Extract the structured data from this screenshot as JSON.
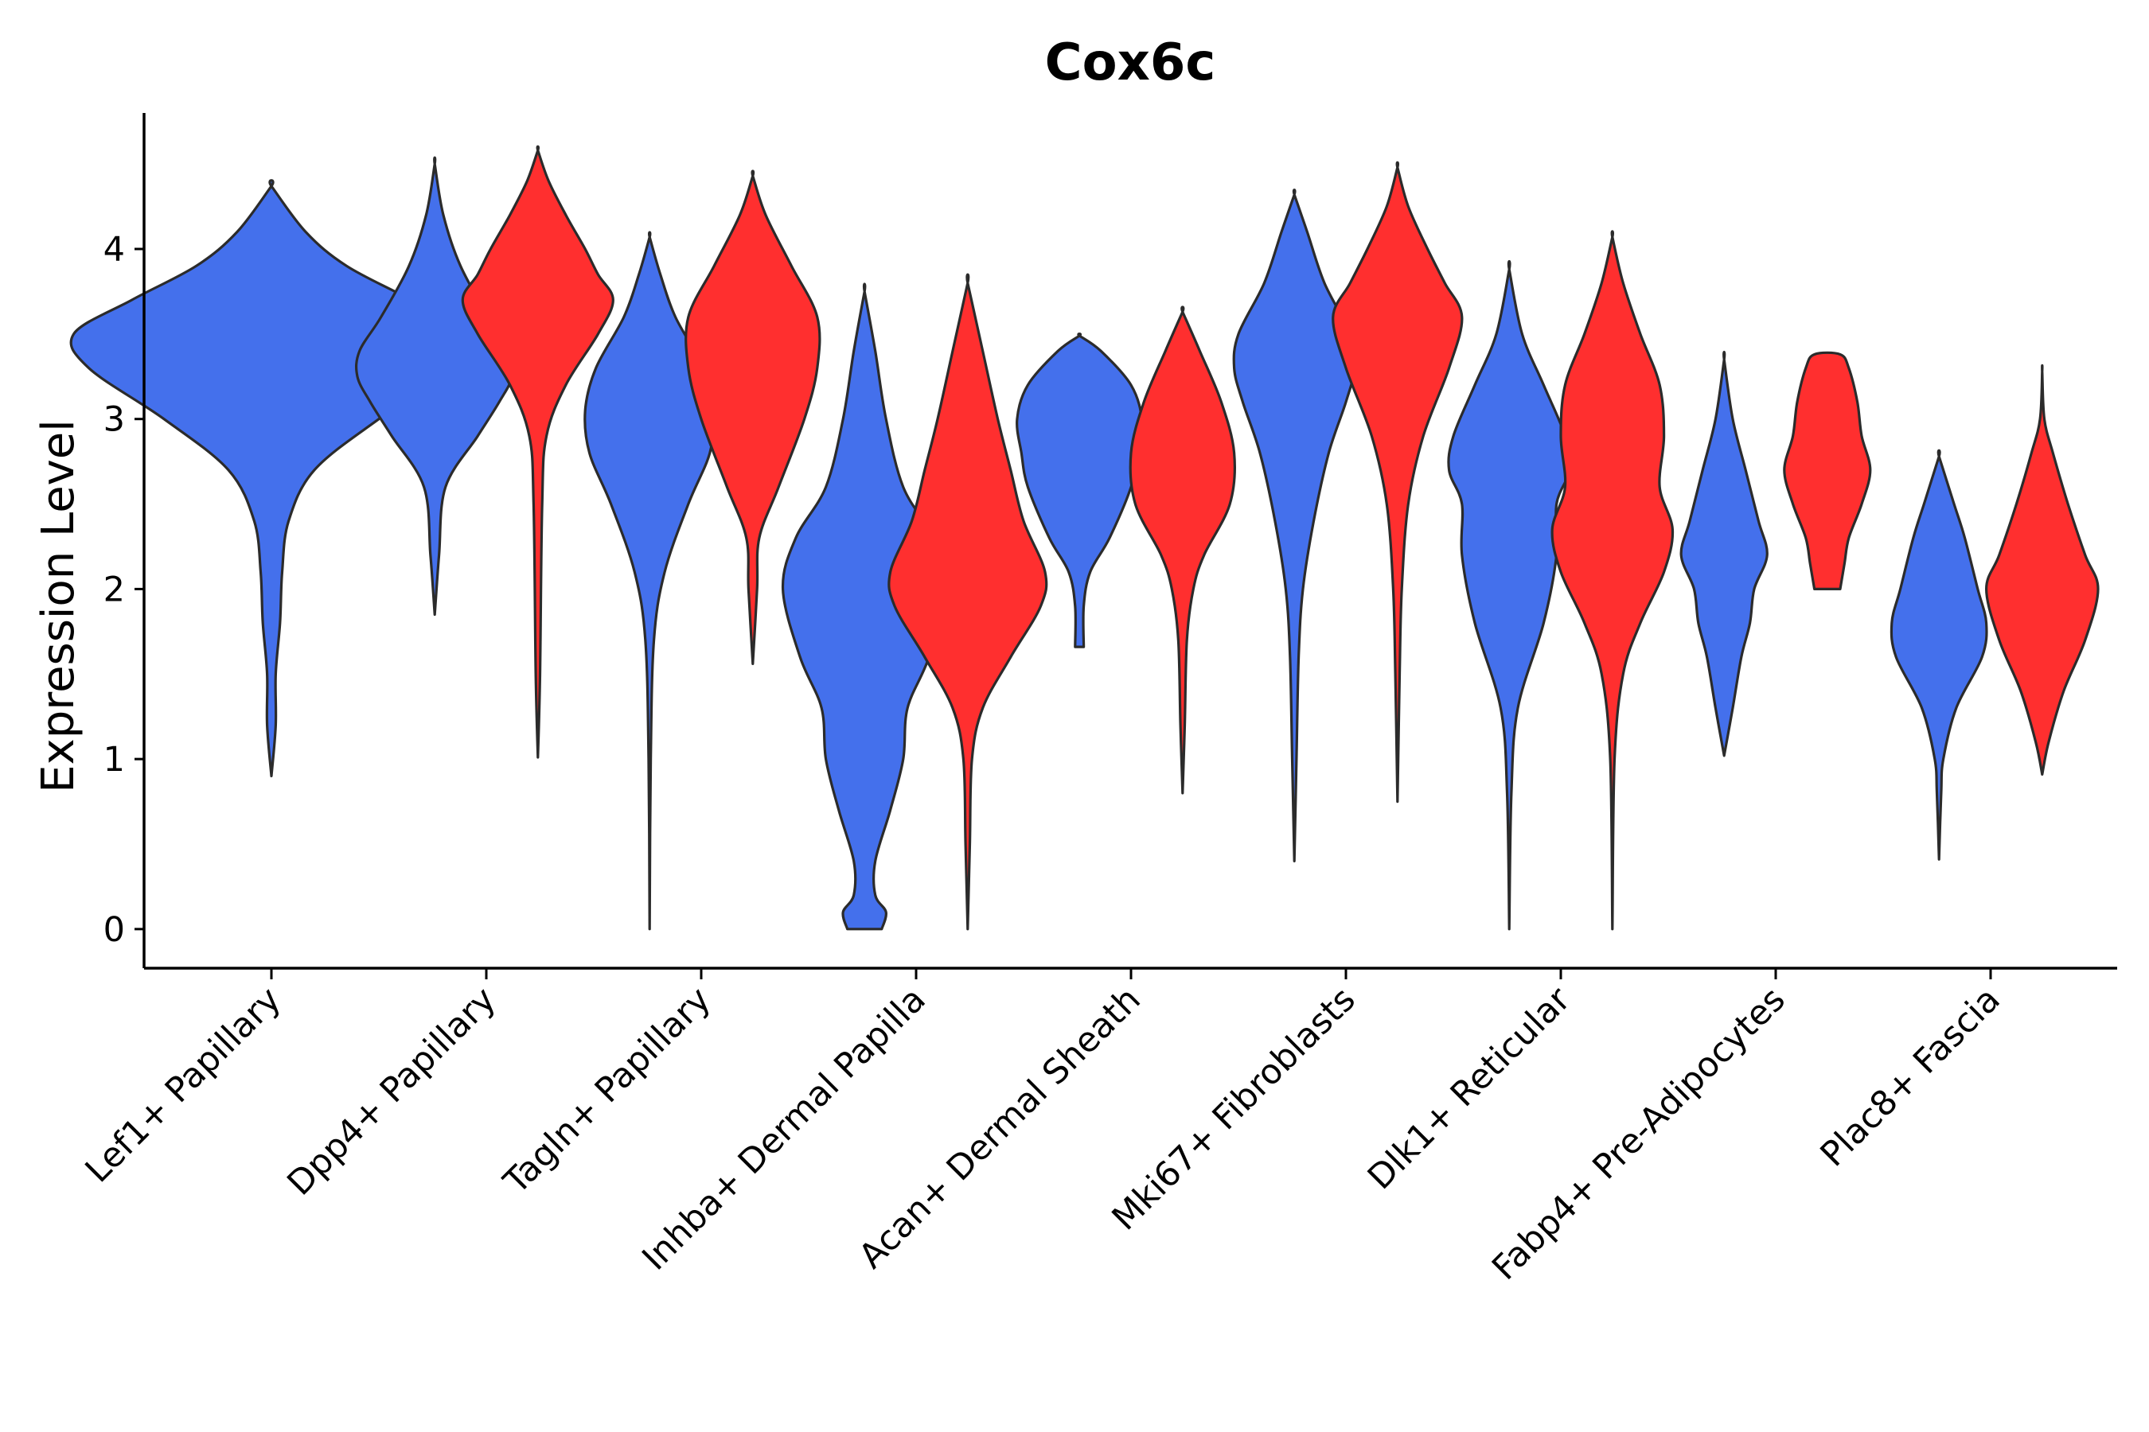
{
  "chart_data": {
    "type": "violin",
    "title": "Cox6c",
    "xlabel": "",
    "ylabel": "Expression Level",
    "ylim": [
      -0.23,
      4.8
    ],
    "yticks": [
      0,
      1,
      2,
      3,
      4
    ],
    "grid": false,
    "legend": "none",
    "colors": {
      "group_a": "#4470ec",
      "group_b": "#ff2f2f",
      "outline": "#2b2b2b"
    },
    "categories": [
      "Lef1+ Papillary",
      "Dpp4+ Papillary",
      "Tagln+ Papillary",
      "Inhba+ Dermal Papilla",
      "Acan+ Dermal Sheath",
      "Mki67+ Fibroblasts",
      "Dlk1+ Reticular",
      "Fabp4+ Pre-Adipocytes",
      "Plac8+ Fascia"
    ],
    "violins": [
      {
        "category": 0,
        "group": "group_a",
        "offset": 0.0,
        "profile": [
          [
            0.9,
            0
          ],
          [
            1.2,
            0.02
          ],
          [
            1.5,
            0.02
          ],
          [
            1.8,
            0.04
          ],
          [
            2.1,
            0.05
          ],
          [
            2.4,
            0.08
          ],
          [
            2.7,
            0.2
          ],
          [
            3.0,
            0.5
          ],
          [
            3.3,
            0.85
          ],
          [
            3.5,
            0.92
          ],
          [
            3.7,
            0.65
          ],
          [
            3.9,
            0.35
          ],
          [
            4.1,
            0.16
          ],
          [
            4.37,
            0
          ]
        ]
      },
      {
        "category": 1,
        "group": "group_a",
        "offset": -0.24,
        "profile": [
          [
            1.85,
            0
          ],
          [
            2.2,
            0.02
          ],
          [
            2.6,
            0.05
          ],
          [
            2.9,
            0.2
          ],
          [
            3.1,
            0.3
          ],
          [
            3.25,
            0.36
          ],
          [
            3.4,
            0.35
          ],
          [
            3.6,
            0.25
          ],
          [
            3.9,
            0.12
          ],
          [
            4.2,
            0.04
          ],
          [
            4.5,
            0
          ]
        ]
      },
      {
        "category": 1,
        "group": "group_b",
        "offset": 0.24,
        "profile": [
          [
            1.01,
            0
          ],
          [
            1.5,
            0.01
          ],
          [
            2.5,
            0.02
          ],
          [
            2.9,
            0.04
          ],
          [
            3.2,
            0.13
          ],
          [
            3.5,
            0.28
          ],
          [
            3.7,
            0.35
          ],
          [
            3.85,
            0.28
          ],
          [
            4.0,
            0.22
          ],
          [
            4.2,
            0.13
          ],
          [
            4.4,
            0.05
          ],
          [
            4.58,
            0
          ]
        ]
      },
      {
        "category": 2,
        "group": "group_a",
        "offset": -0.24,
        "profile": [
          [
            0.0,
            0
          ],
          [
            1.0,
            0.005
          ],
          [
            1.7,
            0.02
          ],
          [
            2.1,
            0.07
          ],
          [
            2.5,
            0.18
          ],
          [
            2.8,
            0.28
          ],
          [
            3.05,
            0.3
          ],
          [
            3.3,
            0.25
          ],
          [
            3.6,
            0.12
          ],
          [
            3.85,
            0.05
          ],
          [
            4.07,
            0
          ]
        ]
      },
      {
        "category": 2,
        "group": "group_b",
        "offset": 0.24,
        "profile": [
          [
            1.56,
            0
          ],
          [
            2.0,
            0.02
          ],
          [
            2.3,
            0.03
          ],
          [
            2.6,
            0.12
          ],
          [
            3.0,
            0.24
          ],
          [
            3.3,
            0.3
          ],
          [
            3.6,
            0.3
          ],
          [
            3.9,
            0.18
          ],
          [
            4.2,
            0.06
          ],
          [
            4.43,
            0
          ]
        ]
      },
      {
        "category": 3,
        "group": "group_a",
        "offset": -0.24,
        "profile": [
          [
            0.0,
            0.08
          ],
          [
            0.1,
            0.1
          ],
          [
            0.2,
            0.05
          ],
          [
            0.4,
            0.05
          ],
          [
            0.7,
            0.12
          ],
          [
            1.0,
            0.18
          ],
          [
            1.3,
            0.2
          ],
          [
            1.6,
            0.3
          ],
          [
            2.0,
            0.38
          ],
          [
            2.3,
            0.32
          ],
          [
            2.6,
            0.18
          ],
          [
            3.0,
            0.1
          ],
          [
            3.4,
            0.05
          ],
          [
            3.75,
            0
          ]
        ]
      },
      {
        "category": 3,
        "group": "group_b",
        "offset": 0.24,
        "profile": [
          [
            0.0,
            0
          ],
          [
            0.5,
            0.01
          ],
          [
            1.0,
            0.02
          ],
          [
            1.3,
            0.07
          ],
          [
            1.6,
            0.2
          ],
          [
            1.9,
            0.34
          ],
          [
            2.1,
            0.36
          ],
          [
            2.4,
            0.26
          ],
          [
            2.7,
            0.2
          ],
          [
            3.0,
            0.14
          ],
          [
            3.4,
            0.07
          ],
          [
            3.8,
            0
          ]
        ]
      },
      {
        "category": 4,
        "group": "group_a",
        "offset": -0.24,
        "profile": [
          [
            1.66,
            0.02
          ],
          [
            1.9,
            0.02
          ],
          [
            2.1,
            0.05
          ],
          [
            2.3,
            0.14
          ],
          [
            2.6,
            0.24
          ],
          [
            2.8,
            0.27
          ],
          [
            3.0,
            0.29
          ],
          [
            3.2,
            0.24
          ],
          [
            3.4,
            0.1
          ],
          [
            3.49,
            0
          ]
        ]
      },
      {
        "category": 4,
        "group": "group_b",
        "offset": 0.24,
        "profile": [
          [
            0.8,
            0
          ],
          [
            1.2,
            0.01
          ],
          [
            1.7,
            0.02
          ],
          [
            2.0,
            0.05
          ],
          [
            2.2,
            0.1
          ],
          [
            2.5,
            0.22
          ],
          [
            2.8,
            0.24
          ],
          [
            3.1,
            0.18
          ],
          [
            3.4,
            0.08
          ],
          [
            3.63,
            0
          ]
        ]
      },
      {
        "category": 5,
        "group": "group_a",
        "offset": -0.24,
        "profile": [
          [
            0.4,
            0
          ],
          [
            1.0,
            0.01
          ],
          [
            1.6,
            0.02
          ],
          [
            2.0,
            0.04
          ],
          [
            2.4,
            0.09
          ],
          [
            2.8,
            0.16
          ],
          [
            3.1,
            0.24
          ],
          [
            3.3,
            0.28
          ],
          [
            3.5,
            0.26
          ],
          [
            3.8,
            0.14
          ],
          [
            4.1,
            0.06
          ],
          [
            4.32,
            0
          ]
        ]
      },
      {
        "category": 5,
        "group": "group_b",
        "offset": 0.24,
        "profile": [
          [
            0.75,
            0
          ],
          [
            1.5,
            0.01
          ],
          [
            2.0,
            0.02
          ],
          [
            2.5,
            0.05
          ],
          [
            2.9,
            0.12
          ],
          [
            3.3,
            0.24
          ],
          [
            3.6,
            0.3
          ],
          [
            3.8,
            0.22
          ],
          [
            4.0,
            0.14
          ],
          [
            4.25,
            0.05
          ],
          [
            4.48,
            0
          ]
        ]
      },
      {
        "category": 6,
        "group": "group_a",
        "offset": -0.24,
        "profile": [
          [
            0.0,
            0
          ],
          [
            0.8,
            0.01
          ],
          [
            1.3,
            0.04
          ],
          [
            1.8,
            0.16
          ],
          [
            2.2,
            0.22
          ],
          [
            2.5,
            0.22
          ],
          [
            2.7,
            0.28
          ],
          [
            2.9,
            0.26
          ],
          [
            3.2,
            0.16
          ],
          [
            3.5,
            0.06
          ],
          [
            3.88,
            0
          ]
        ]
      },
      {
        "category": 6,
        "group": "group_b",
        "offset": 0.24,
        "profile": [
          [
            0.0,
            0
          ],
          [
            1.0,
            0.01
          ],
          [
            1.5,
            0.05
          ],
          [
            1.8,
            0.13
          ],
          [
            2.1,
            0.24
          ],
          [
            2.35,
            0.28
          ],
          [
            2.6,
            0.22
          ],
          [
            2.9,
            0.24
          ],
          [
            3.2,
            0.22
          ],
          [
            3.5,
            0.13
          ],
          [
            3.8,
            0.05
          ],
          [
            4.07,
            0
          ]
        ]
      },
      {
        "category": 7,
        "group": "group_a",
        "offset": -0.24,
        "profile": [
          [
            1.02,
            0
          ],
          [
            1.3,
            0.04
          ],
          [
            1.6,
            0.08
          ],
          [
            1.8,
            0.12
          ],
          [
            2.0,
            0.14
          ],
          [
            2.2,
            0.2
          ],
          [
            2.4,
            0.16
          ],
          [
            2.7,
            0.1
          ],
          [
            3.0,
            0.04
          ],
          [
            3.35,
            0
          ]
        ]
      },
      {
        "category": 7,
        "group": "group_b",
        "offset": 0.24,
        "profile": [
          [
            2.0,
            0.06
          ],
          [
            2.15,
            0.08
          ],
          [
            2.3,
            0.1
          ],
          [
            2.5,
            0.16
          ],
          [
            2.7,
            0.2
          ],
          [
            2.9,
            0.16
          ],
          [
            3.1,
            0.14
          ],
          [
            3.3,
            0.1
          ],
          [
            3.38,
            0.06
          ]
        ]
      },
      {
        "category": 8,
        "group": "group_a",
        "offset": -0.24,
        "profile": [
          [
            0.41,
            0
          ],
          [
            0.8,
            0.01
          ],
          [
            1.0,
            0.02
          ],
          [
            1.3,
            0.08
          ],
          [
            1.6,
            0.2
          ],
          [
            1.8,
            0.22
          ],
          [
            2.0,
            0.18
          ],
          [
            2.3,
            0.12
          ],
          [
            2.5,
            0.07
          ],
          [
            2.78,
            0
          ]
        ]
      },
      {
        "category": 8,
        "group": "group_b",
        "offset": 0.24,
        "profile": [
          [
            0.91,
            0
          ],
          [
            1.1,
            0.03
          ],
          [
            1.4,
            0.1
          ],
          [
            1.7,
            0.2
          ],
          [
            2.0,
            0.26
          ],
          [
            2.2,
            0.2
          ],
          [
            2.5,
            0.12
          ],
          [
            2.8,
            0.05
          ],
          [
            3.0,
            0.01
          ],
          [
            3.28,
            0
          ]
        ]
      }
    ]
  }
}
